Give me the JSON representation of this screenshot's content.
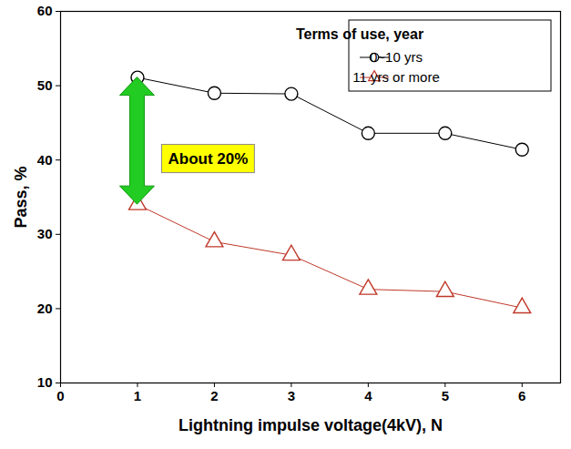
{
  "chart_data": {
    "type": "line",
    "x_label": "Lightning impulse voltage(4kV), N",
    "y_label": "Pass, %",
    "x": [
      1,
      2,
      3,
      4,
      5,
      6
    ],
    "series": [
      {
        "name": "0~10 yrs",
        "color": "#000000",
        "marker": "circle",
        "line_style": "solid",
        "values": [
          51.1,
          49.0,
          48.9,
          43.6,
          43.6,
          41.4
        ]
      },
      {
        "name": "11 yrs or more",
        "color": "#c0392b",
        "marker": "triangle",
        "line_style": "solid",
        "values": [
          34.0,
          29.0,
          27.2,
          22.6,
          22.3,
          20.1
        ]
      }
    ],
    "xlim": [
      0,
      6.5
    ],
    "xticks": [
      0,
      1,
      2,
      3,
      4,
      5,
      6
    ],
    "ylim": [
      10,
      60
    ],
    "yticks": [
      10,
      20,
      30,
      40,
      50,
      60
    ],
    "grid": false,
    "legend": "top-right",
    "legend_title": "Terms of use, year",
    "annotations": [
      {
        "text": "About 20%"
      }
    ]
  }
}
